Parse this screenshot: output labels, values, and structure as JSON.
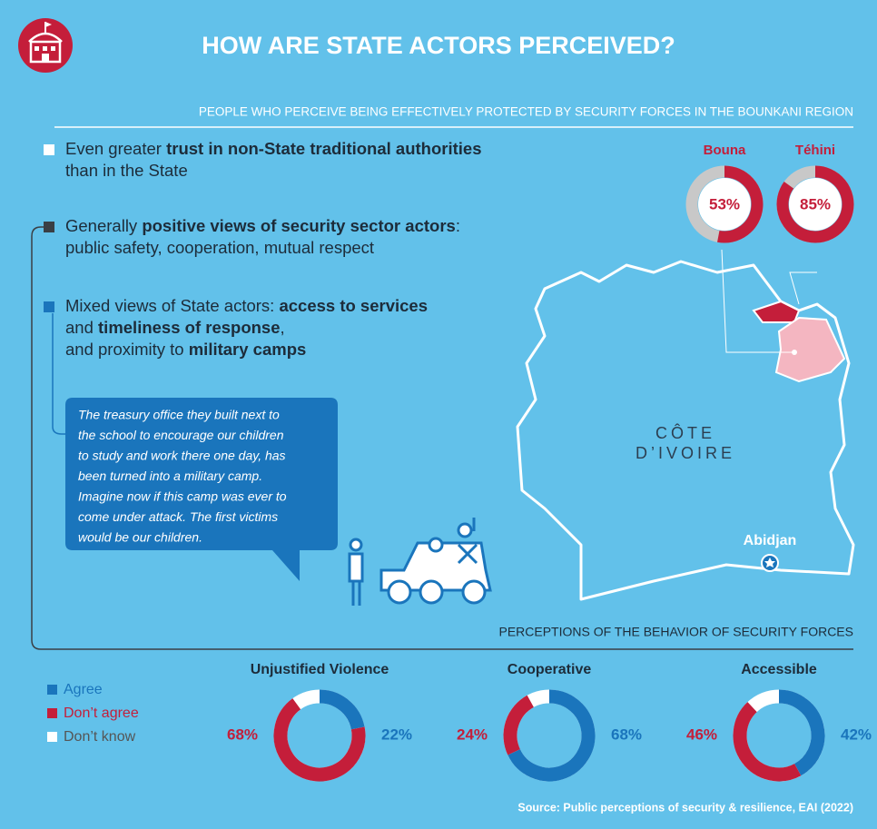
{
  "header": {
    "title": "HOW ARE STATE ACTORS PERCEIVED?"
  },
  "bullets": [
    {
      "marker": "#ffffff",
      "lines": [
        [
          {
            "t": "Even greater "
          },
          {
            "t": "trust in non-State traditional authorities",
            "b": true
          }
        ],
        [
          {
            "t": "than in the State"
          }
        ]
      ]
    },
    {
      "marker": "#3a3f45",
      "lines": [
        [
          {
            "t": "Generally "
          },
          {
            "t": "positive views of security sector actors",
            "b": true
          },
          {
            "t": ":"
          }
        ],
        [
          {
            "t": "public safety, cooperation, mutual respect"
          }
        ]
      ]
    },
    {
      "marker": "#1a75bc",
      "lines": [
        [
          {
            "t": "Mixed views of State actors: "
          },
          {
            "t": "access to services",
            "b": true
          }
        ],
        [
          {
            "t": "and "
          },
          {
            "t": "timeliness of response",
            "b": true
          },
          {
            "t": ","
          }
        ],
        [
          {
            "t": "and proximity to "
          },
          {
            "t": "military camps",
            "b": true
          }
        ]
      ]
    }
  ],
  "quote": {
    "lines": [
      "The treasury office they built next to",
      "the school to encourage our children",
      "to study and work there one day, has",
      "been turned into a military camp.",
      "Imagine now if this camp was ever to",
      "come under attack. The first victims",
      "would be our children."
    ]
  },
  "map": {
    "country": [
      "CÔTE",
      "D’IVOIRE"
    ],
    "city": "Abidjan"
  },
  "chart_data": [
    {
      "type": "pie",
      "title": "PEOPLE WHO PERCEIVE BEING EFFECTIVELY PROTECTED BY SECURITY FORCES IN THE BOUNKANI REGION",
      "categories": [
        "Bouna",
        "Téhini"
      ],
      "values": [
        53,
        85
      ],
      "value_labels": [
        "53%",
        "85%"
      ],
      "color": "#c41e3a"
    },
    {
      "type": "donut",
      "title": "PERCEPTIONS OF THE BEHAVIOR OF SECURITY FORCES",
      "categories": [
        "Unjustified Violence",
        "Cooperative",
        "Accessible"
      ],
      "series": [
        {
          "name": "Agree",
          "color": "#1a75bc",
          "values": [
            22,
            68,
            42
          ],
          "value_labels": [
            "22%",
            "68%",
            "42%"
          ]
        },
        {
          "name": "Don’t agree",
          "color": "#c41e3a",
          "values": [
            68,
            24,
            46
          ],
          "value_labels": [
            "68%",
            "24%",
            "46%"
          ]
        },
        {
          "name": "Don’t know",
          "color": "#ffffff",
          "values": [
            null,
            null,
            null
          ]
        }
      ],
      "source": "Source: Public perceptions of security & resilience, EAI (2022)"
    }
  ]
}
